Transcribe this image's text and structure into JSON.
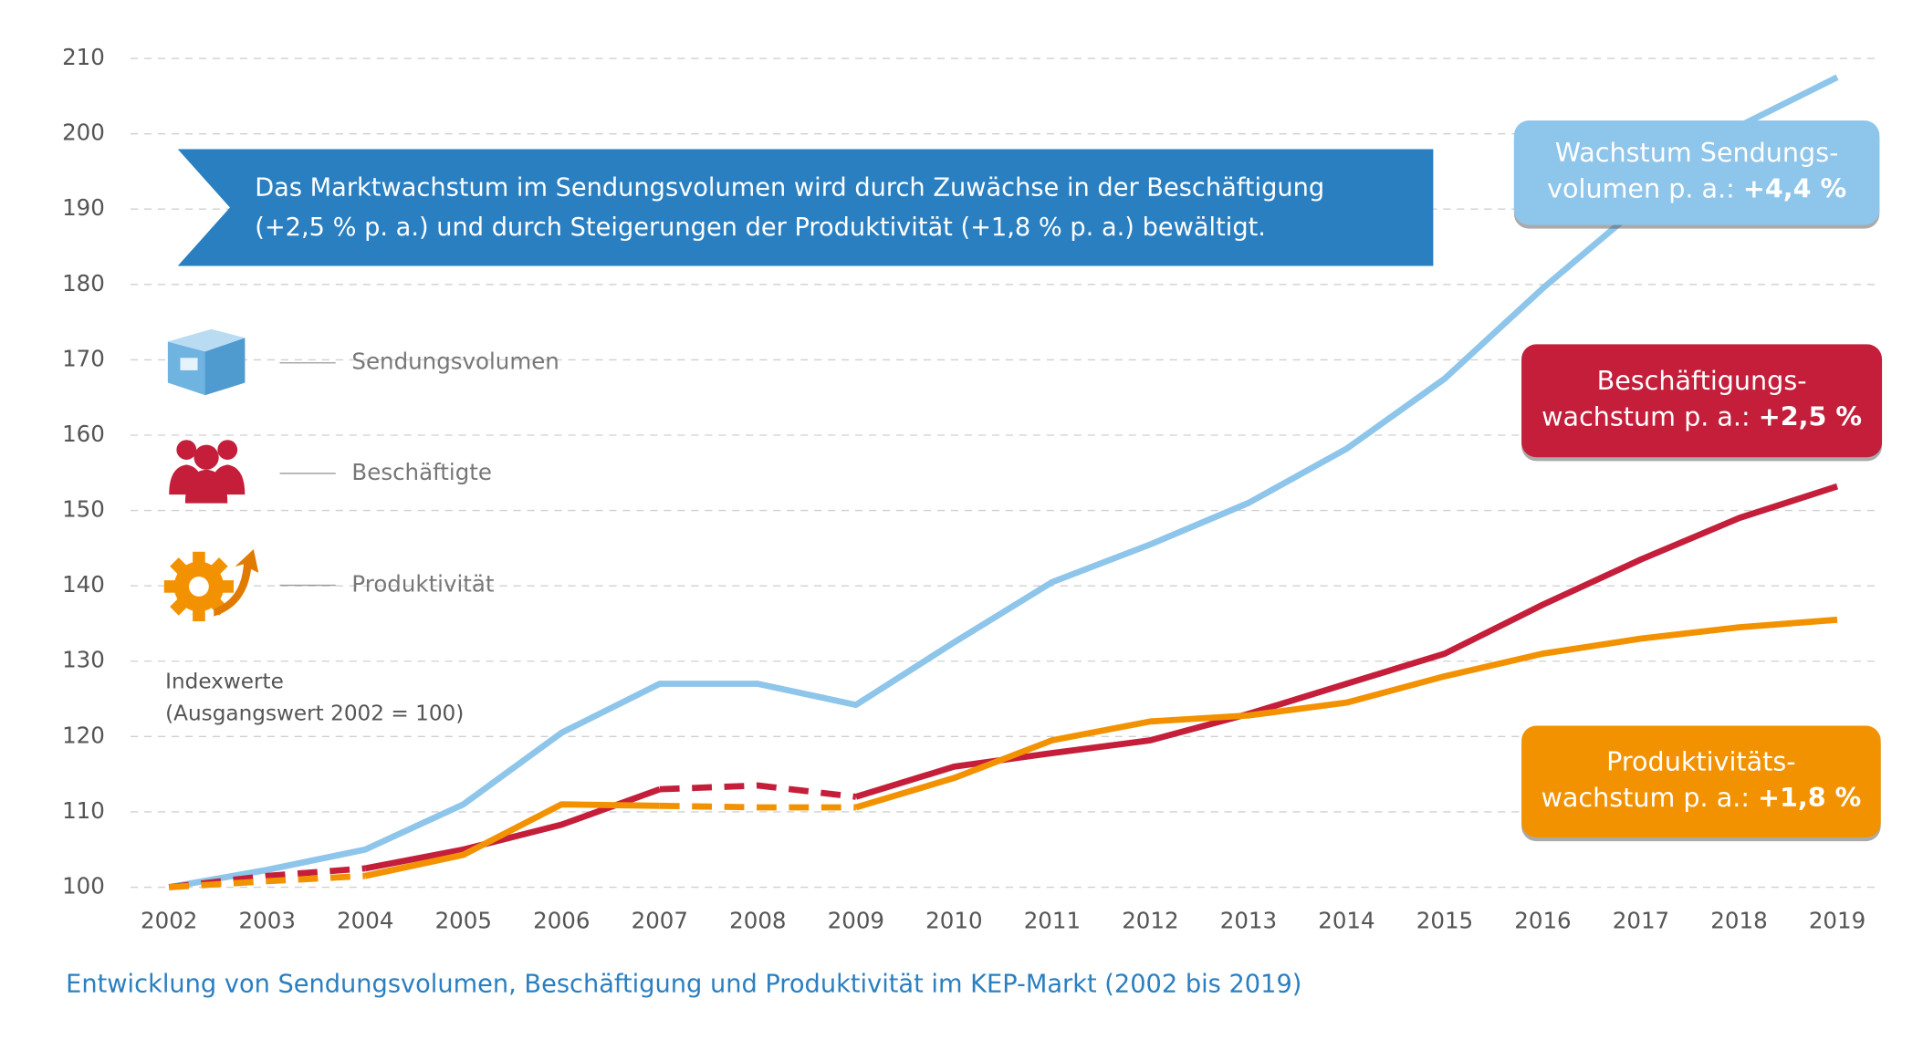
{
  "chart_data": {
    "type": "line",
    "title": "Entwicklung von Sendungsvolumen, Beschäftigung und Produktivität im KEP-Markt (2002 bis 2019)",
    "banner": [
      "Das Marktwachstum im Sendungsvolumen wird durch Zuwächse in der Beschäftigung",
      "(+2,5 % p. a.) und durch Steigerungen der Produktivität (+1,8 % p. a.) bewältigt."
    ],
    "y_label": [
      "Indexwerte",
      "(Ausgangswert 2002 = 100)"
    ],
    "categories": [
      "2002",
      "2003",
      "2004",
      "2005",
      "2006",
      "2007",
      "2008",
      "2009",
      "2010",
      "2011",
      "2012",
      "2013",
      "2014",
      "2015",
      "2016",
      "2017",
      "2018",
      "2019"
    ],
    "ylim": [
      100,
      210
    ],
    "yticks": [
      100,
      110,
      120,
      130,
      140,
      150,
      160,
      170,
      180,
      190,
      200,
      210
    ],
    "grid": true,
    "series": [
      {
        "name": "Sendungsvolumen",
        "color": "#8ec5ea",
        "values": [
          100,
          102.3,
          105,
          111,
          120.5,
          127,
          127,
          124.2,
          132.5,
          140.5,
          145.5,
          151,
          158.2,
          167.5,
          179.5,
          190.5,
          201,
          207.5
        ],
        "dashed_ranges": []
      },
      {
        "name": "Beschäftigte",
        "color": "#c41e3a",
        "values": [
          100,
          101.5,
          102.5,
          105,
          108.3,
          113,
          113.5,
          112,
          116,
          117.8,
          119.5,
          123,
          127,
          131,
          137.5,
          143.5,
          149,
          153.2
        ],
        "dashed_ranges": [
          [
            0,
            2
          ],
          [
            5,
            7
          ]
        ]
      },
      {
        "name": "Produktivität",
        "color": "#f39200",
        "values": [
          100,
          100.8,
          101.5,
          104.3,
          111,
          110.8,
          110.6,
          110.6,
          114.5,
          119.5,
          122,
          122.8,
          124.5,
          128,
          131,
          133,
          134.5,
          135.5
        ],
        "dashed_ranges": [
          [
            0,
            2
          ],
          [
            5,
            7
          ]
        ]
      }
    ],
    "callouts": [
      {
        "lines": [
          "Wachstum Sendungs-",
          "volumen p. a.: "
        ],
        "highlight": "+4,4 %",
        "color": "#8ec5ea"
      },
      {
        "lines": [
          "Beschäftigungs-",
          "wachstum p. a.: "
        ],
        "highlight": "+2,5 %",
        "color": "#c41e3a"
      },
      {
        "lines": [
          "Produktivitäts-",
          "wachstum p. a.: "
        ],
        "highlight": "+1,8 %",
        "color": "#f39200"
      }
    ]
  }
}
